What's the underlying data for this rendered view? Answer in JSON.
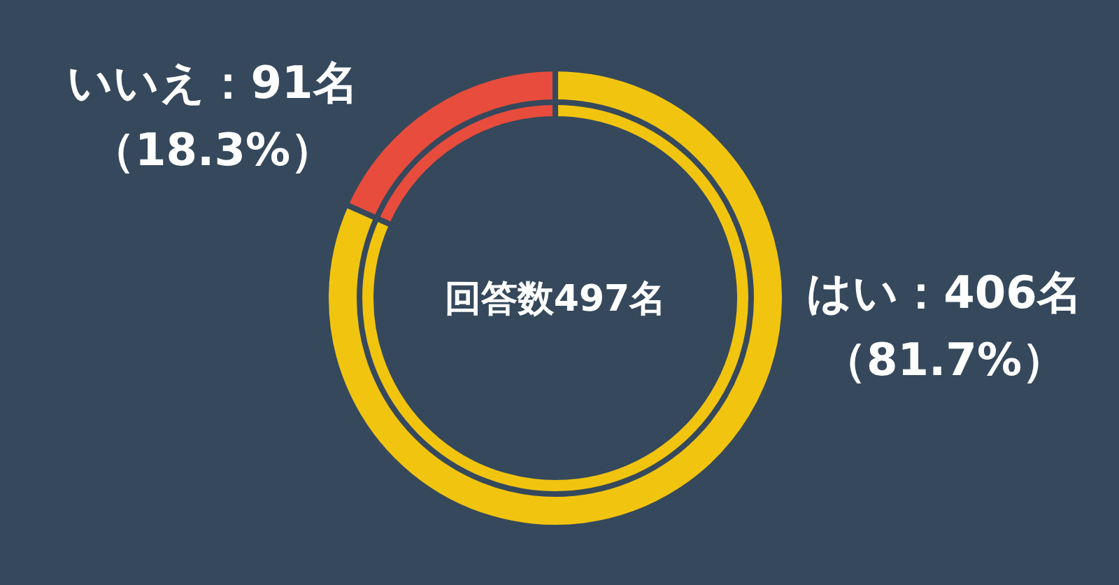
{
  "chart_data": {
    "type": "donut",
    "title": "回答数497名",
    "categories": [
      "はい",
      "いいえ"
    ],
    "values": [
      406,
      91
    ],
    "colors": [
      "#f1c40f",
      "#e74c3c"
    ],
    "value_labels": [
      "：406名",
      "：91名"
    ],
    "annotations": [
      "（81.7%）",
      "（18.3%）"
    ]
  }
}
